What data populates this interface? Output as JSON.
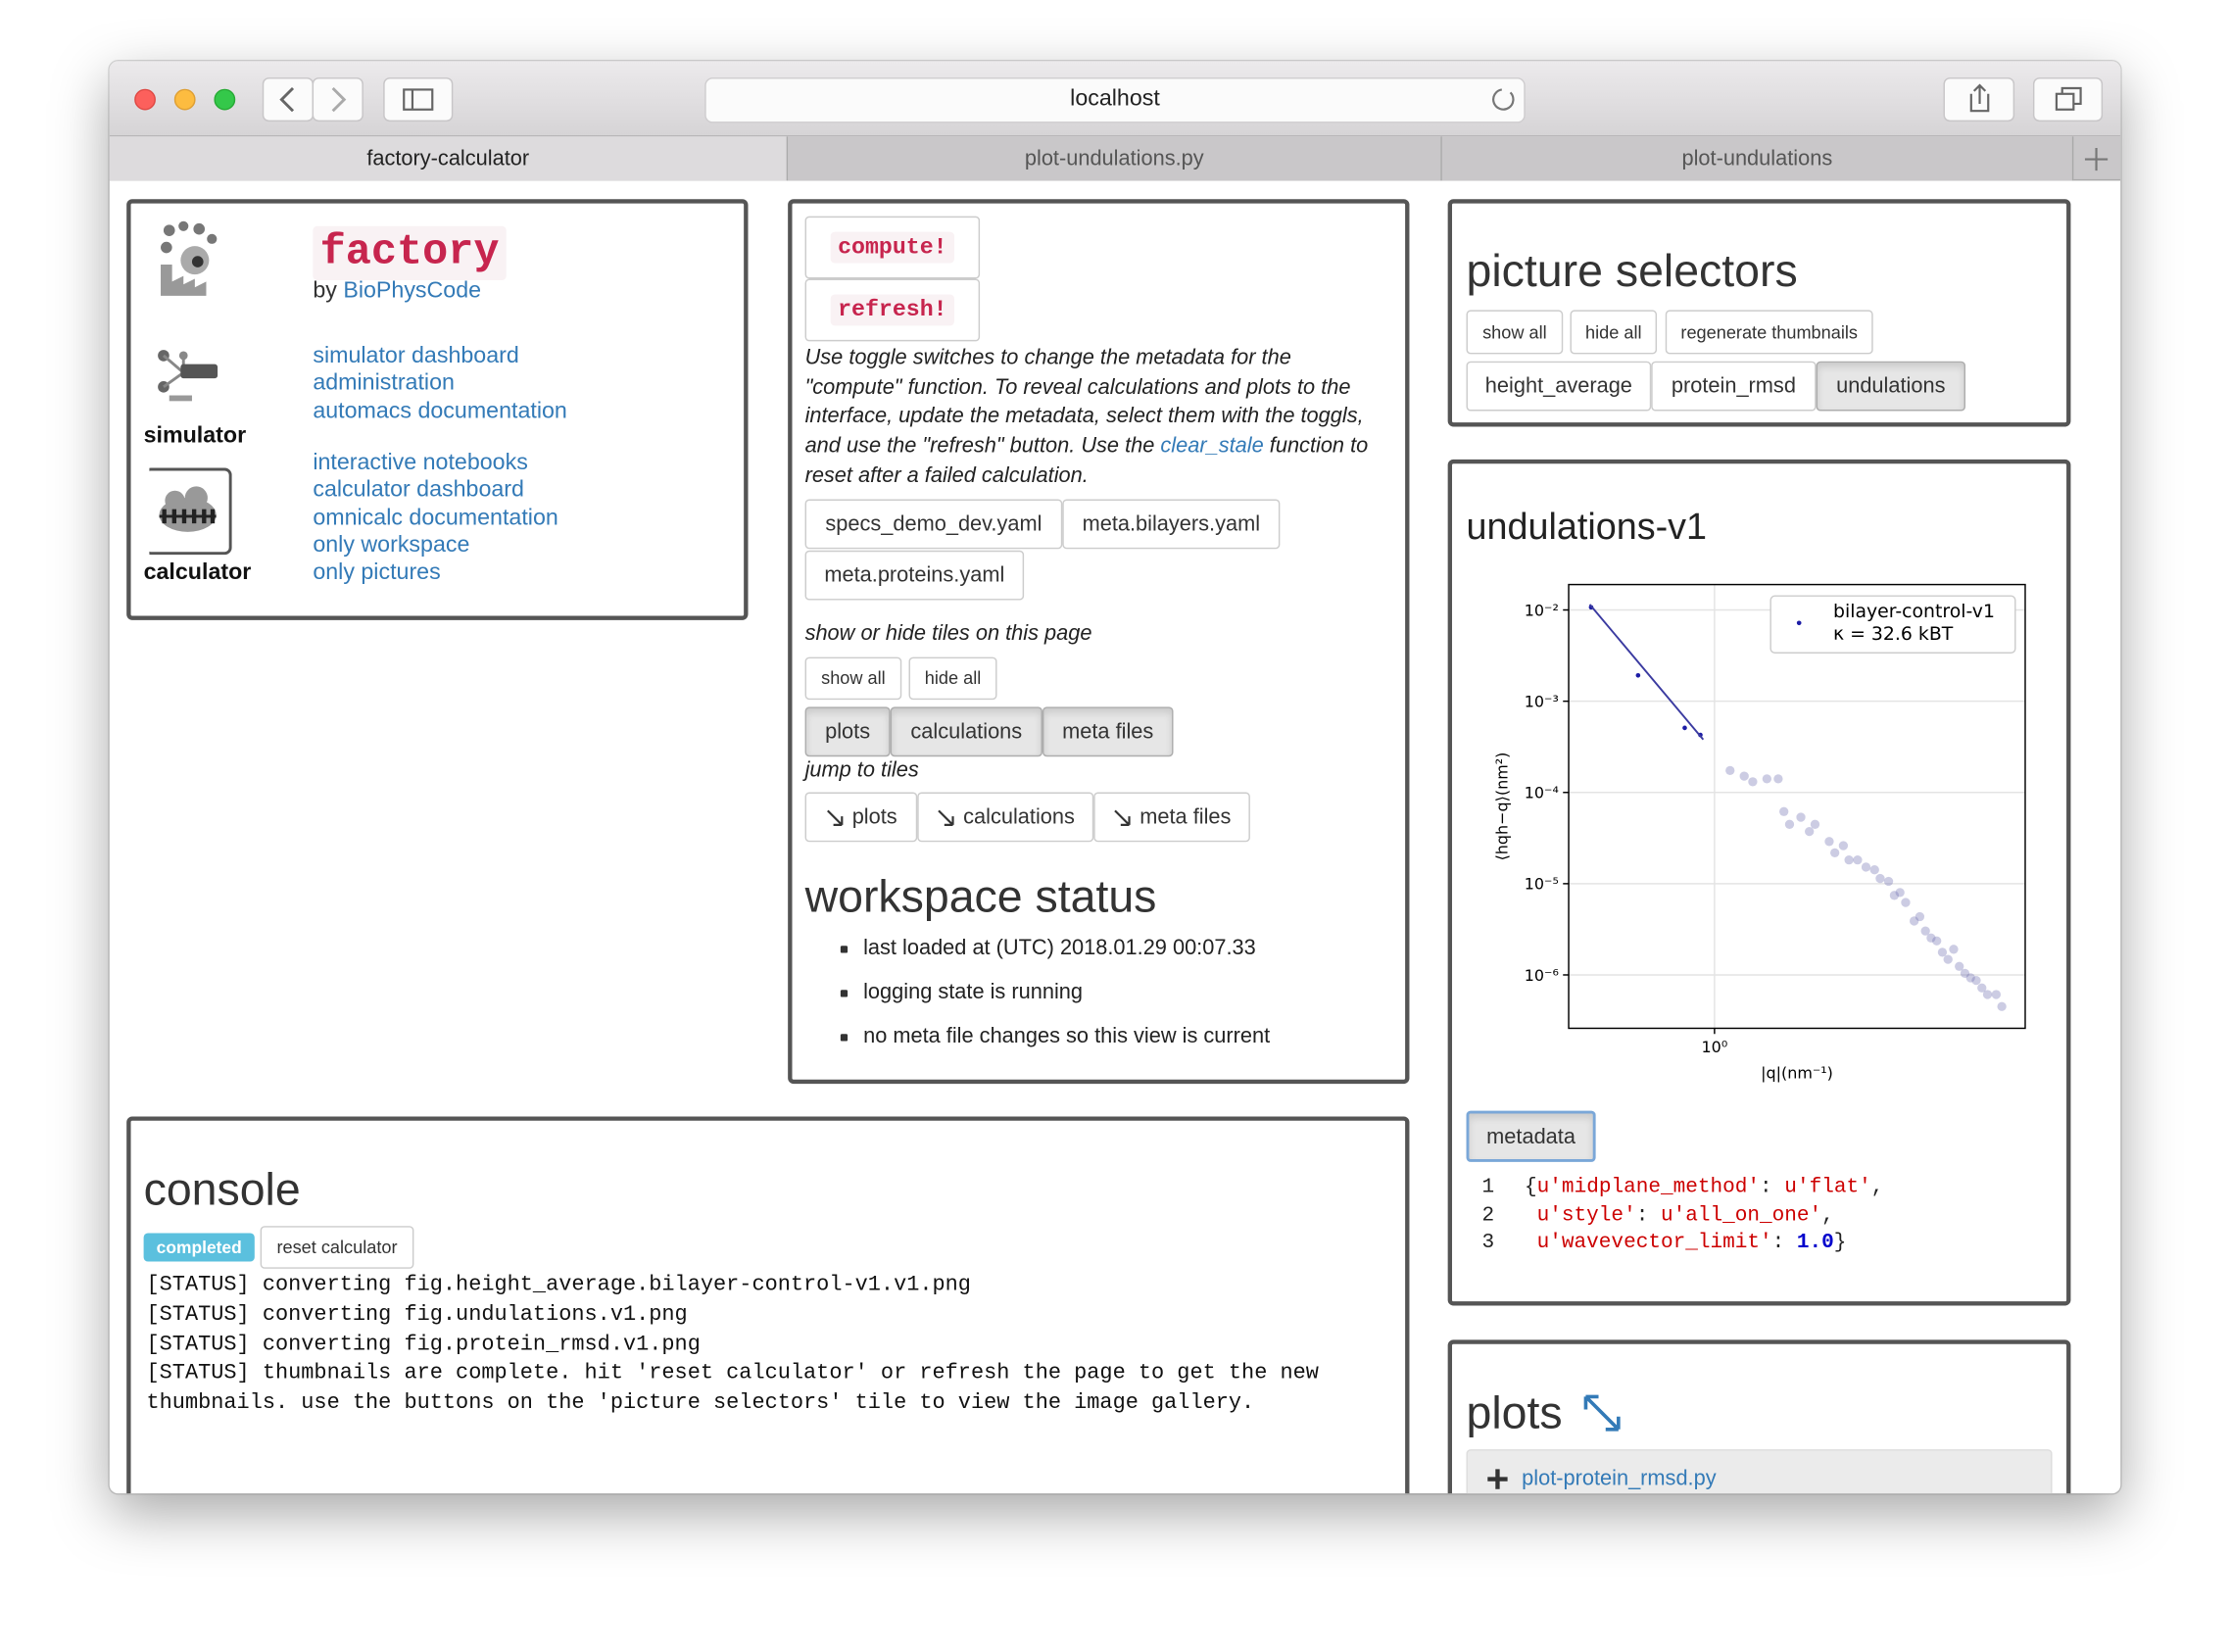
{
  "browser": {
    "url": "localhost",
    "tabs": [
      "factory-calculator",
      "plot-undulations.py",
      "plot-undulations"
    ]
  },
  "factory_tile": {
    "logo": "factory",
    "byline": "by",
    "byline_link": "BioPhysCode",
    "simulator_label": "simulator",
    "calculator_label": "calculator",
    "simulator_links": [
      "simulator dashboard",
      "administration",
      "automacs documentation"
    ],
    "calculator_links": [
      "interactive notebooks",
      "calculator dashboard",
      "omnicalc documentation",
      "only workspace",
      "only pictures"
    ]
  },
  "controls_tile": {
    "buttons": [
      "compute!",
      "refresh!"
    ],
    "description_before": "Use toggle switches to change the metadata for the \"compute\" function. To reveal calculations and plots to the interface, update the metadata, select them with the toggls, and use the \"refresh\" button. Use the",
    "description_link": "clear_stale",
    "description_after": "function to reset after a failed calculation.",
    "files": [
      "specs_demo_dev.yaml",
      "meta.bilayers.yaml",
      "meta.proteins.yaml"
    ],
    "tiles_prompt": "show or hide tiles on this page",
    "show_all": "show all",
    "hide_all": "hide all",
    "tile_toggles": [
      "plots",
      "calculations",
      "meta files"
    ],
    "jump_prompt": "jump to tiles",
    "jump_links": [
      "plots",
      "calculations",
      "meta files"
    ],
    "status_title": "workspace status",
    "status_items": [
      "last loaded at (UTC) 2018.01.29 00:07.33",
      "logging state is running",
      "no meta file changes so this view is current"
    ]
  },
  "picture_selectors": {
    "title": "picture selectors",
    "buttons": [
      "show all",
      "hide all",
      "regenerate thumbnails"
    ],
    "pictures": [
      "height_average",
      "protein_rmsd",
      "undulations"
    ],
    "active": "undulations"
  },
  "plot_tile": {
    "title": "undulations-v1",
    "metadata_button": "metadata",
    "code": [
      {
        "number": 1,
        "tokens": [
          "{",
          "u'midplane_method'",
          ": ",
          "u'flat'",
          ","
        ]
      },
      {
        "number": 2,
        "tokens": [
          "u'style'",
          ": ",
          "u'all_on_one'",
          ","
        ]
      },
      {
        "number": 3,
        "tokens": [
          "u'wavevector_limit'",
          ": ",
          "1.0",
          "}"
        ]
      }
    ]
  },
  "chart_data": {
    "type": "scatter",
    "xlabel": "|q|(nm⁻¹)",
    "ylabel": "⟨hqh−q⟩(nm²)",
    "xscale": "log",
    "yscale": "log",
    "grid": true,
    "xlim": [
      0.3,
      13
    ],
    "ylim": [
      2.6e-07,
      0.019
    ],
    "xticks": [
      {
        "value": 1,
        "label": "10⁰"
      }
    ],
    "yticks": [
      {
        "value": 0.01,
        "label": "10⁻²"
      },
      {
        "value": 0.001,
        "label": "10⁻³"
      },
      {
        "value": 0.0001,
        "label": "10⁻⁴"
      },
      {
        "value": 1e-05,
        "label": "10⁻⁵"
      },
      {
        "value": 1e-06,
        "label": "10⁻⁶"
      }
    ],
    "legend": "upper right",
    "annotation": "κ = 32.6 kBT",
    "series": [
      {
        "name": "bilayer-control-v1",
        "color": "#1c1ca6",
        "style": "points",
        "x": [
          0.361,
          0.532,
          0.782,
          0.89
        ],
        "values": [
          0.0107,
          0.00192,
          0.00051,
          0.000427
        ]
      },
      {
        "color": "#3a3aa0",
        "style": "line",
        "x": [
          0.357,
          0.911
        ],
        "values": [
          0.0115,
          0.00038
        ]
      },
      {
        "color": "#6d6db0",
        "style": "faded",
        "x": [
          1.137,
          1.278,
          1.371,
          1.541,
          1.692,
          1.773,
          1.858,
          2.04,
          2.188,
          2.293,
          2.578,
          2.7,
          2.897,
          3.035,
          3.258,
          3.493,
          3.748,
          3.926,
          4.209,
          4.413,
          4.624,
          4.845,
          5.198,
          5.445,
          5.705,
          5.977,
          6.263,
          6.561,
          6.874,
          7.202,
          7.545,
          7.905,
          8.282,
          8.677,
          9.09,
          9.523,
          10.23,
          10.72
        ],
        "values": [
          0.000174,
          0.000151,
          0.000131,
          0.000141,
          0.000141,
          6.17e-05,
          4.47e-05,
          5.35e-05,
          3.73e-05,
          4.47e-05,
          2.9e-05,
          2.18e-05,
          2.61e-05,
          1.82e-05,
          1.82e-05,
          1.52e-05,
          1.42e-05,
          1.14e-05,
          1.06e-05,
          7.44e-06,
          8e-06,
          6.22e-06,
          3.9e-06,
          4.35e-06,
          3.03e-06,
          2.54e-06,
          2.36e-06,
          1.77e-06,
          1.48e-06,
          1.91e-06,
          1.24e-06,
          1.04e-06,
          9.3e-07,
          8.7e-07,
          7.2e-07,
          6.1e-07,
          6.1e-07,
          4.5e-07
        ]
      }
    ]
  },
  "plots_tile": {
    "title": "plots",
    "items": [
      "plot-protein_rmsd.py"
    ]
  },
  "console": {
    "title": "console",
    "badge": "completed",
    "reset_button": "reset calculator",
    "log": [
      "[STATUS] converting fig.height_average.bilayer-control-v1.v1.png",
      "[STATUS] converting fig.undulations.v1.png",
      "[STATUS] converting fig.protein_rmsd.v1.png",
      "[STATUS] thumbnails are complete. hit 'reset calculator' or refresh the page to get the new thumbnails. use the buttons on the 'picture selectors' tile to view the image gallery."
    ]
  }
}
